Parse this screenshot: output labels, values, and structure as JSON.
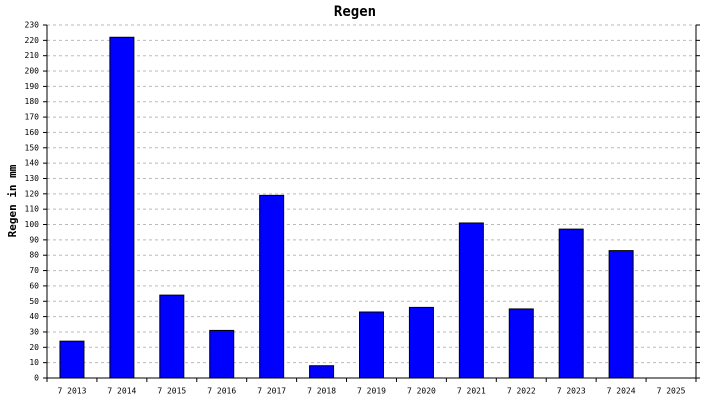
{
  "chart_data": {
    "type": "bar",
    "title": "Regen",
    "y_label": "Regen in mm",
    "categories": [
      "7 2013",
      "7 2014",
      "7 2015",
      "7 2016",
      "7 2017",
      "7 2018",
      "7 2019",
      "7 2020",
      "7 2021",
      "7 2022",
      "7 2023",
      "7 2024",
      "7 2025"
    ],
    "values": [
      24,
      222,
      54,
      31,
      119,
      8,
      43,
      46,
      101,
      45,
      97,
      83,
      null
    ],
    "color": "#0000ff",
    "ylim": [
      0,
      230
    ],
    "yticks": [
      0,
      10,
      20,
      30,
      40,
      50,
      60,
      70,
      80,
      90,
      100,
      110,
      120,
      130,
      140,
      150,
      160,
      170,
      180,
      190,
      200,
      210,
      220,
      230
    ],
    "grid": true
  }
}
